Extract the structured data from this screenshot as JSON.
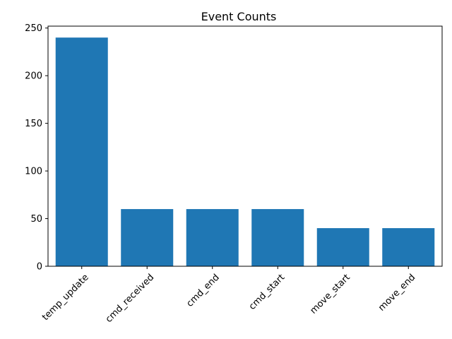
{
  "chart_data": {
    "type": "bar",
    "title": "Event Counts",
    "xlabel": "",
    "ylabel": "",
    "categories": [
      "temp_update",
      "cmd_received",
      "cmd_end",
      "cmd_start",
      "move_start",
      "move_end"
    ],
    "values": [
      240,
      60,
      60,
      60,
      40,
      40
    ],
    "ylim": [
      0,
      252
    ],
    "yticks": [
      0,
      50,
      100,
      150,
      200,
      250
    ],
    "grid": false,
    "bar_color": "#1f77b4"
  }
}
